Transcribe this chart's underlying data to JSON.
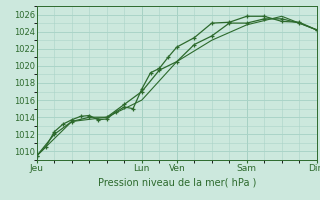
{
  "xlabel": "Pression niveau de la mer( hPa )",
  "bg_color": "#cce8dd",
  "grid_color": "#aad4c8",
  "line_color": "#2d6a2d",
  "vline_color": "#336633",
  "ylim": [
    1009.0,
    1027.0
  ],
  "yticks": [
    1010,
    1012,
    1014,
    1016,
    1018,
    1020,
    1022,
    1024,
    1026
  ],
  "day_labels": [
    "Jeu",
    "Lun",
    "Ven",
    "Sam",
    "Dim"
  ],
  "day_positions": [
    0,
    3.0,
    4.0,
    6.0,
    8.0
  ],
  "xmin": 0,
  "xmax": 8.0,
  "line1_x": [
    0,
    0.25,
    0.5,
    0.75,
    1.0,
    1.25,
    1.5,
    1.75,
    2.0,
    2.25,
    2.5,
    2.75,
    3.0,
    3.25,
    3.5,
    3.75,
    4.0,
    4.5,
    5.0,
    5.5,
    6.0,
    6.5,
    7.0,
    7.5,
    8.0
  ],
  "line1_y": [
    1009.5,
    1010.5,
    1012.3,
    1013.2,
    1013.7,
    1014.1,
    1014.2,
    1013.7,
    1013.8,
    1014.6,
    1015.2,
    1015.0,
    1017.3,
    1019.2,
    1019.7,
    1021.0,
    1022.2,
    1023.3,
    1025.0,
    1025.1,
    1025.8,
    1025.8,
    1025.2,
    1025.1,
    1024.2
  ],
  "line2_x": [
    0,
    0.5,
    1.0,
    1.5,
    2.0,
    2.5,
    3.0,
    3.5,
    4.0,
    4.5,
    5.0,
    5.5,
    6.0,
    6.5,
    7.0,
    7.5,
    8.0
  ],
  "line2_y": [
    1009.5,
    1012.0,
    1013.5,
    1014.0,
    1014.0,
    1015.5,
    1017.0,
    1019.5,
    1020.5,
    1022.5,
    1023.5,
    1025.0,
    1025.0,
    1025.5,
    1025.5,
    1025.0,
    1024.2
  ],
  "line3_x": [
    0,
    1.0,
    2.0,
    3.0,
    4.0,
    5.0,
    6.0,
    7.0,
    8.0
  ],
  "line3_y": [
    1009.5,
    1013.5,
    1014.0,
    1016.0,
    1020.5,
    1023.0,
    1024.8,
    1025.8,
    1024.2
  ],
  "xlabel_fontsize": 7,
  "ytick_fontsize": 6,
  "xtick_fontsize": 6.5
}
